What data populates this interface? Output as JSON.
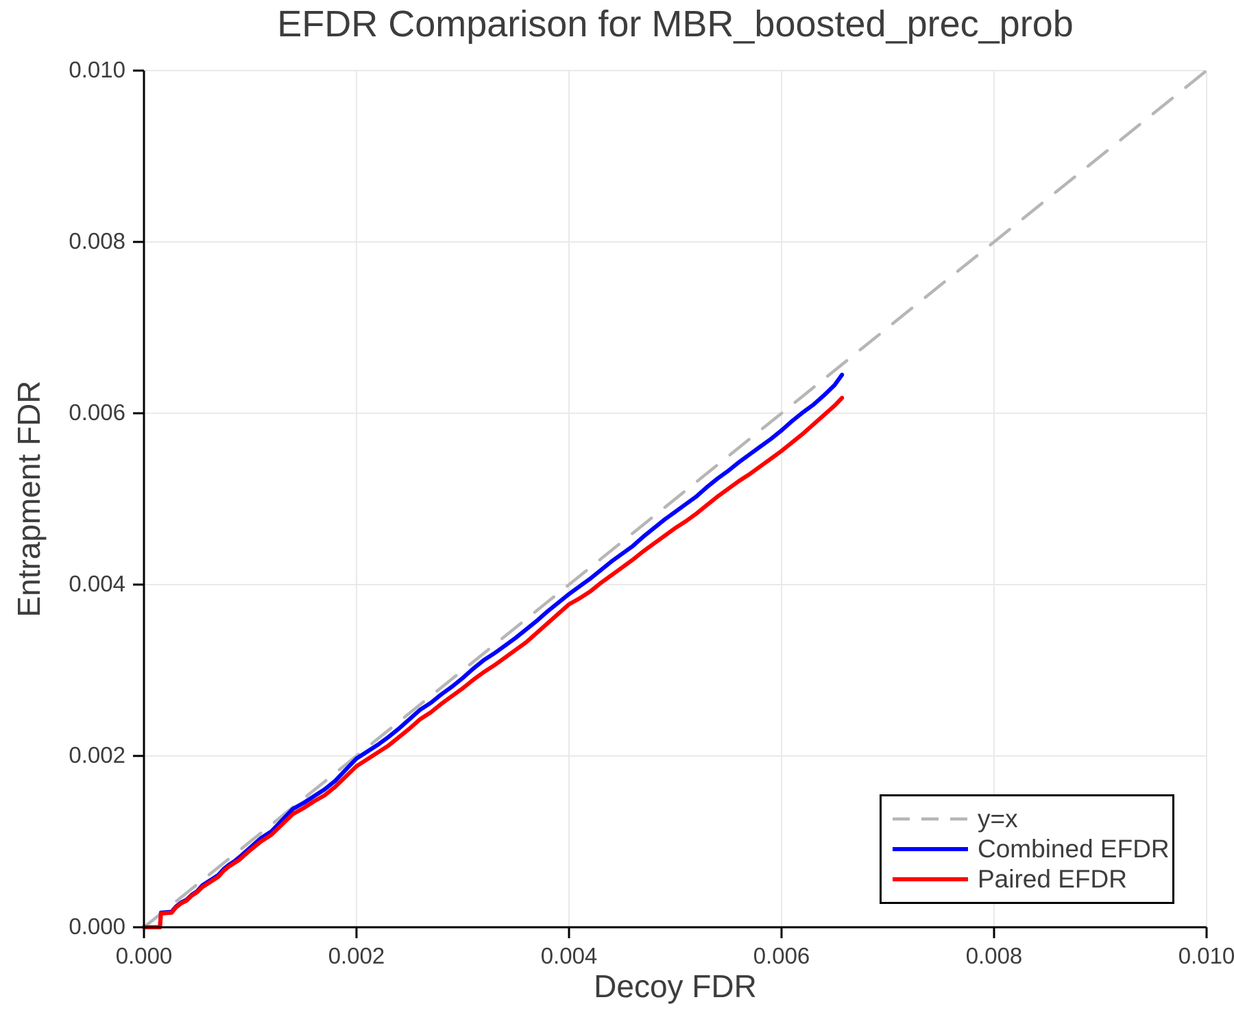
{
  "chart_data": {
    "type": "line",
    "title": "EFDR Comparison for MBR_boosted_prec_prob",
    "xlabel": "Decoy FDR",
    "ylabel": "Entrapment FDR",
    "xlim": [
      0.0,
      0.01
    ],
    "ylim": [
      0.0,
      0.01
    ],
    "xticks": {
      "values": [
        0.0,
        0.002,
        0.004,
        0.006,
        0.008,
        0.01
      ],
      "labels": [
        "0.000",
        "0.002",
        "0.004",
        "0.006",
        "0.008",
        "0.010"
      ]
    },
    "yticks": {
      "values": [
        0.0,
        0.002,
        0.004,
        0.006,
        0.008,
        0.01
      ],
      "labels": [
        "0.000",
        "0.002",
        "0.004",
        "0.006",
        "0.008",
        "0.010"
      ]
    },
    "grid": true,
    "legend_position": "lower right",
    "colors": {
      "text": "#3d3d3d",
      "grid": "#e9e9e9",
      "spine": "#000000",
      "legend_border": "#000000"
    },
    "series": [
      {
        "name": "y=x",
        "color": "#b6b6b6",
        "style": "dashed",
        "width": 4.5,
        "points": [
          [
            0.0,
            0.0
          ],
          [
            0.01,
            0.01
          ]
        ]
      },
      {
        "name": "Combined EFDR",
        "color": "#0000ff",
        "style": "solid",
        "width": 6,
        "points": [
          [
            0.0,
            0.0
          ],
          [
            0.00015,
            0.0
          ],
          [
            0.00016,
            0.00017
          ],
          [
            0.00026,
            0.00018
          ],
          [
            0.0003,
            0.00024
          ],
          [
            0.00035,
            0.00029
          ],
          [
            0.0004,
            0.00032
          ],
          [
            0.00045,
            0.00038
          ],
          [
            0.0005,
            0.00042
          ],
          [
            0.00055,
            0.00049
          ],
          [
            0.0006,
            0.00053
          ],
          [
            0.00065,
            0.00057
          ],
          [
            0.0007,
            0.00061
          ],
          [
            0.00075,
            0.00068
          ],
          [
            0.0008,
            0.00073
          ],
          [
            0.00085,
            0.00077
          ],
          [
            0.0009,
            0.00082
          ],
          [
            0.001,
            0.00093
          ],
          [
            0.0011,
            0.00104
          ],
          [
            0.0012,
            0.00112
          ],
          [
            0.0013,
            0.00125
          ],
          [
            0.0014,
            0.00138
          ],
          [
            0.0015,
            0.00145
          ],
          [
            0.0016,
            0.00153
          ],
          [
            0.0017,
            0.00161
          ],
          [
            0.0018,
            0.00171
          ],
          [
            0.0019,
            0.00184
          ],
          [
            0.002,
            0.00197
          ],
          [
            0.0021,
            0.00205
          ],
          [
            0.0022,
            0.00213
          ],
          [
            0.0023,
            0.00222
          ],
          [
            0.0024,
            0.00232
          ],
          [
            0.0025,
            0.00243
          ],
          [
            0.0026,
            0.00254
          ],
          [
            0.0027,
            0.00262
          ],
          [
            0.0028,
            0.00272
          ],
          [
            0.0029,
            0.00281
          ],
          [
            0.003,
            0.00291
          ],
          [
            0.0031,
            0.00302
          ],
          [
            0.0032,
            0.00312
          ],
          [
            0.0033,
            0.0032
          ],
          [
            0.0034,
            0.00329
          ],
          [
            0.0035,
            0.00338
          ],
          [
            0.0036,
            0.00348
          ],
          [
            0.0037,
            0.00358
          ],
          [
            0.0038,
            0.00369
          ],
          [
            0.0039,
            0.00379
          ],
          [
            0.004,
            0.00389
          ],
          [
            0.0041,
            0.00398
          ],
          [
            0.0042,
            0.00407
          ],
          [
            0.0043,
            0.00417
          ],
          [
            0.0044,
            0.00427
          ],
          [
            0.0045,
            0.00436
          ],
          [
            0.0046,
            0.00445
          ],
          [
            0.0047,
            0.00456
          ],
          [
            0.0048,
            0.00466
          ],
          [
            0.0049,
            0.00476
          ],
          [
            0.005,
            0.00485
          ],
          [
            0.0051,
            0.00494
          ],
          [
            0.0052,
            0.00503
          ],
          [
            0.0053,
            0.00514
          ],
          [
            0.0054,
            0.00524
          ],
          [
            0.0055,
            0.00533
          ],
          [
            0.0056,
            0.00543
          ],
          [
            0.0057,
            0.00552
          ],
          [
            0.0058,
            0.00561
          ],
          [
            0.0059,
            0.0057
          ],
          [
            0.006,
            0.0058
          ],
          [
            0.0061,
            0.00591
          ],
          [
            0.0062,
            0.00601
          ],
          [
            0.0063,
            0.0061
          ],
          [
            0.0064,
            0.00621
          ],
          [
            0.0065,
            0.00633
          ],
          [
            0.00657,
            0.00645
          ]
        ]
      },
      {
        "name": "Paired EFDR",
        "color": "#ff0000",
        "style": "solid",
        "width": 6,
        "points": [
          [
            0.0,
            0.0
          ],
          [
            0.00015,
            0.0
          ],
          [
            0.00016,
            0.00016
          ],
          [
            0.00026,
            0.00017
          ],
          [
            0.0003,
            0.00023
          ],
          [
            0.00035,
            0.00028
          ],
          [
            0.0004,
            0.00031
          ],
          [
            0.00045,
            0.00037
          ],
          [
            0.0005,
            0.00041
          ],
          [
            0.00055,
            0.00047
          ],
          [
            0.0006,
            0.00051
          ],
          [
            0.00065,
            0.00055
          ],
          [
            0.0007,
            0.00059
          ],
          [
            0.00075,
            0.00066
          ],
          [
            0.0008,
            0.00071
          ],
          [
            0.00085,
            0.00075
          ],
          [
            0.0009,
            0.00079
          ],
          [
            0.001,
            0.0009
          ],
          [
            0.0011,
            0.001
          ],
          [
            0.0012,
            0.00108
          ],
          [
            0.0013,
            0.0012
          ],
          [
            0.0014,
            0.00132
          ],
          [
            0.0015,
            0.00139
          ],
          [
            0.0016,
            0.00147
          ],
          [
            0.0017,
            0.00154
          ],
          [
            0.0018,
            0.00164
          ],
          [
            0.0019,
            0.00176
          ],
          [
            0.002,
            0.00188
          ],
          [
            0.0021,
            0.00196
          ],
          [
            0.0022,
            0.00204
          ],
          [
            0.0023,
            0.00212
          ],
          [
            0.0024,
            0.00222
          ],
          [
            0.0025,
            0.00232
          ],
          [
            0.0026,
            0.00243
          ],
          [
            0.0027,
            0.00251
          ],
          [
            0.0028,
            0.00261
          ],
          [
            0.0029,
            0.0027
          ],
          [
            0.003,
            0.00279
          ],
          [
            0.0031,
            0.00289
          ],
          [
            0.0032,
            0.00298
          ],
          [
            0.0033,
            0.00306
          ],
          [
            0.0034,
            0.00315
          ],
          [
            0.0035,
            0.00324
          ],
          [
            0.0036,
            0.00333
          ],
          [
            0.0037,
            0.00344
          ],
          [
            0.0038,
            0.00355
          ],
          [
            0.0039,
            0.00366
          ],
          [
            0.004,
            0.00377
          ],
          [
            0.0041,
            0.00384
          ],
          [
            0.0042,
            0.00392
          ],
          [
            0.0043,
            0.00402
          ],
          [
            0.0044,
            0.00411
          ],
          [
            0.0045,
            0.0042
          ],
          [
            0.0046,
            0.00429
          ],
          [
            0.0047,
            0.00439
          ],
          [
            0.0048,
            0.00448
          ],
          [
            0.0049,
            0.00457
          ],
          [
            0.005,
            0.00466
          ],
          [
            0.0051,
            0.00474
          ],
          [
            0.0052,
            0.00483
          ],
          [
            0.0053,
            0.00493
          ],
          [
            0.0054,
            0.00503
          ],
          [
            0.0055,
            0.00512
          ],
          [
            0.0056,
            0.00521
          ],
          [
            0.0057,
            0.00529
          ],
          [
            0.0058,
            0.00538
          ],
          [
            0.0059,
            0.00547
          ],
          [
            0.006,
            0.00556
          ],
          [
            0.0061,
            0.00566
          ],
          [
            0.0062,
            0.00576
          ],
          [
            0.0063,
            0.00587
          ],
          [
            0.0064,
            0.00598
          ],
          [
            0.0065,
            0.00609
          ],
          [
            0.00657,
            0.00618
          ]
        ]
      }
    ]
  }
}
